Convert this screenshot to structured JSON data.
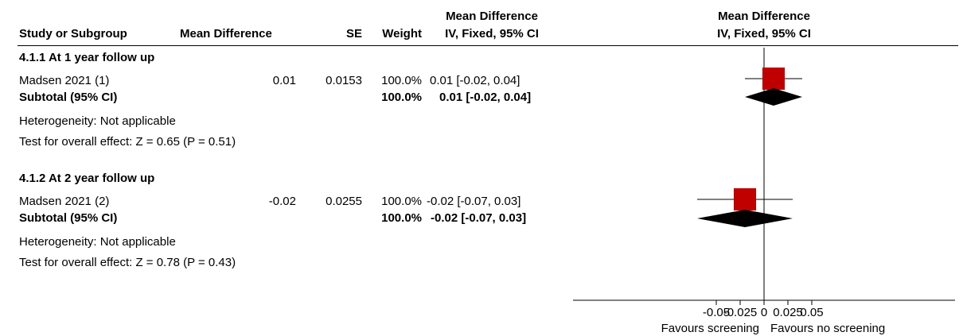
{
  "header": {
    "study": "Study or Subgroup",
    "md": "Mean Difference",
    "se": "SE",
    "weight": "Weight",
    "ci_title": "Mean Difference",
    "ci_sub": "IV, Fixed, 95% CI",
    "plot_title": "Mean Difference",
    "plot_sub": "IV, Fixed, 95% CI"
  },
  "groups": [
    {
      "title": "4.1.1 At 1 year follow up",
      "study": {
        "name": "Madsen 2021 (1)",
        "md": "0.01",
        "se": "0.0153",
        "weight": "100.0%",
        "ci": "0.01 [-0.02, 0.04]"
      },
      "subtotal": {
        "name": "Subtotal (95% CI)",
        "weight": "100.0%",
        "ci": "0.01 [-0.02, 0.04]"
      },
      "heterogeneity": "Heterogeneity: Not applicable",
      "overall": "Test for overall effect: Z = 0.65 (P = 0.51)"
    },
    {
      "title": "4.1.2 At 2 year follow up",
      "study": {
        "name": "Madsen 2021 (2)",
        "md": "-0.02",
        "se": "0.0255",
        "weight": "100.0%",
        "ci": "-0.02 [-0.07, 0.03]"
      },
      "subtotal": {
        "name": "Subtotal (95% CI)",
        "weight": "100.0%",
        "ci": "-0.02 [-0.07, 0.03]"
      },
      "heterogeneity": "Heterogeneity: Not applicable",
      "overall": "Test for overall effect: Z = 0.78 (P = 0.43)"
    }
  ],
  "chart_data": {
    "type": "forest",
    "xlim": [
      -0.1,
      0.1
    ],
    "ticks": [
      {
        "value": -0.05,
        "label": "-0.05"
      },
      {
        "value": -0.025,
        "label": "-0.025"
      },
      {
        "value": 0,
        "label": "0"
      },
      {
        "value": 0.025,
        "label": "0.025"
      },
      {
        "value": 0.05,
        "label": "0.05"
      }
    ],
    "favours_left": "Favours screening",
    "favours_right": "Favours no screening",
    "studies": [
      {
        "estimate": 0.01,
        "lower": -0.02,
        "upper": 0.04
      },
      {
        "estimate": -0.02,
        "lower": -0.07,
        "upper": 0.03
      }
    ],
    "subtotals": [
      {
        "estimate": 0.01,
        "lower": -0.02,
        "upper": 0.04
      },
      {
        "estimate": -0.02,
        "lower": -0.07,
        "upper": 0.03
      }
    ],
    "colors": {
      "square": "#c00000",
      "diamond": "#000000",
      "line": "#000000"
    }
  }
}
